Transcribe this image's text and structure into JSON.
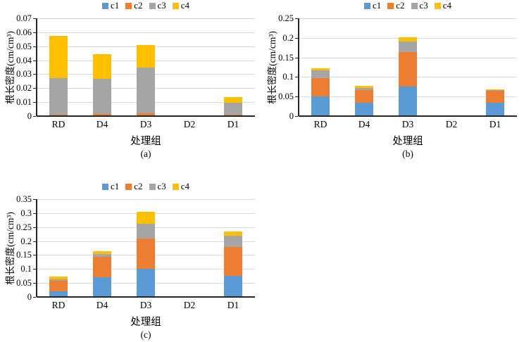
{
  "figure": {
    "series_colors": {
      "c1": "#5B9BD5",
      "c2": "#ED7D31",
      "c3": "#A5A5A5",
      "c4": "#FFC000"
    },
    "grid_color": "#D9D9D9",
    "axis_color": "#262626",
    "background": "#FFFFFF"
  },
  "chart_data": [
    {
      "id": "a",
      "type": "bar",
      "stacked": true,
      "caption": "(a)",
      "xlabel": "处理组",
      "ylabel": "根长密度(cm/cm³)",
      "categories": [
        "RD",
        "D4",
        "D3",
        "D2",
        "D1"
      ],
      "legend": [
        "c1",
        "c2",
        "c3",
        "c4"
      ],
      "legend_position": "top",
      "grid": true,
      "ylim": [
        0,
        0.07
      ],
      "ytick_step": 0.01,
      "ytick_labels": [
        "0",
        "0.01",
        "0.02",
        "0.03",
        "0.04",
        "0.05",
        "0.06",
        "0.07"
      ],
      "series": [
        {
          "name": "c1",
          "values": [
            0,
            0,
            0,
            0,
            0
          ]
        },
        {
          "name": "c2",
          "values": [
            0.001,
            0.0015,
            0.002,
            0,
            0.0008
          ]
        },
        {
          "name": "c3",
          "values": [
            0.026,
            0.025,
            0.033,
            0,
            0.009
          ]
        },
        {
          "name": "c4",
          "values": [
            0.0305,
            0.018,
            0.016,
            0,
            0.0037
          ]
        }
      ]
    },
    {
      "id": "b",
      "type": "bar",
      "stacked": true,
      "caption": "(b)",
      "xlabel": "处理组",
      "ylabel": "根长密度(cm/cm³)",
      "categories": [
        "RD",
        "D4",
        "D3",
        "D2",
        "D1"
      ],
      "legend": [
        "c1",
        "c2",
        "c3",
        "c4"
      ],
      "legend_position": "top",
      "grid": true,
      "ylim": [
        0,
        0.25
      ],
      "ytick_step": 0.05,
      "ytick_labels": [
        "0",
        "0.05",
        "0.1",
        "0.15",
        "0.2",
        "0.25"
      ],
      "series": [
        {
          "name": "c1",
          "values": [
            0.051,
            0.035,
            0.075,
            0,
            0.034
          ]
        },
        {
          "name": "c2",
          "values": [
            0.047,
            0.031,
            0.088,
            0,
            0.03
          ]
        },
        {
          "name": "c3",
          "values": [
            0.019,
            0.006,
            0.027,
            0,
            0.003
          ]
        },
        {
          "name": "c4",
          "values": [
            0.006,
            0.006,
            0.011,
            0,
            0.002
          ]
        }
      ]
    },
    {
      "id": "c",
      "type": "bar",
      "stacked": true,
      "caption": "(c)",
      "xlabel": "处理组",
      "ylabel": "根长密度(cm/cm³)",
      "categories": [
        "RD",
        "D4",
        "D3",
        "D2",
        "D1"
      ],
      "legend": [
        "c1",
        "c2",
        "c3",
        "c4"
      ],
      "legend_position": "top",
      "grid": true,
      "ylim": [
        0,
        0.35
      ],
      "ytick_step": 0.05,
      "ytick_labels": [
        "0",
        "0.05",
        "0.1",
        "0.15",
        "0.2",
        "0.25",
        "0.3",
        "0.35"
      ],
      "series": [
        {
          "name": "c1",
          "values": [
            0.021,
            0.07,
            0.1,
            0,
            0.075
          ]
        },
        {
          "name": "c2",
          "values": [
            0.037,
            0.073,
            0.108,
            0,
            0.105
          ]
        },
        {
          "name": "c3",
          "values": [
            0.006,
            0.01,
            0.055,
            0,
            0.04
          ]
        },
        {
          "name": "c4",
          "values": [
            0.008,
            0.01,
            0.042,
            0,
            0.015
          ]
        }
      ]
    }
  ]
}
